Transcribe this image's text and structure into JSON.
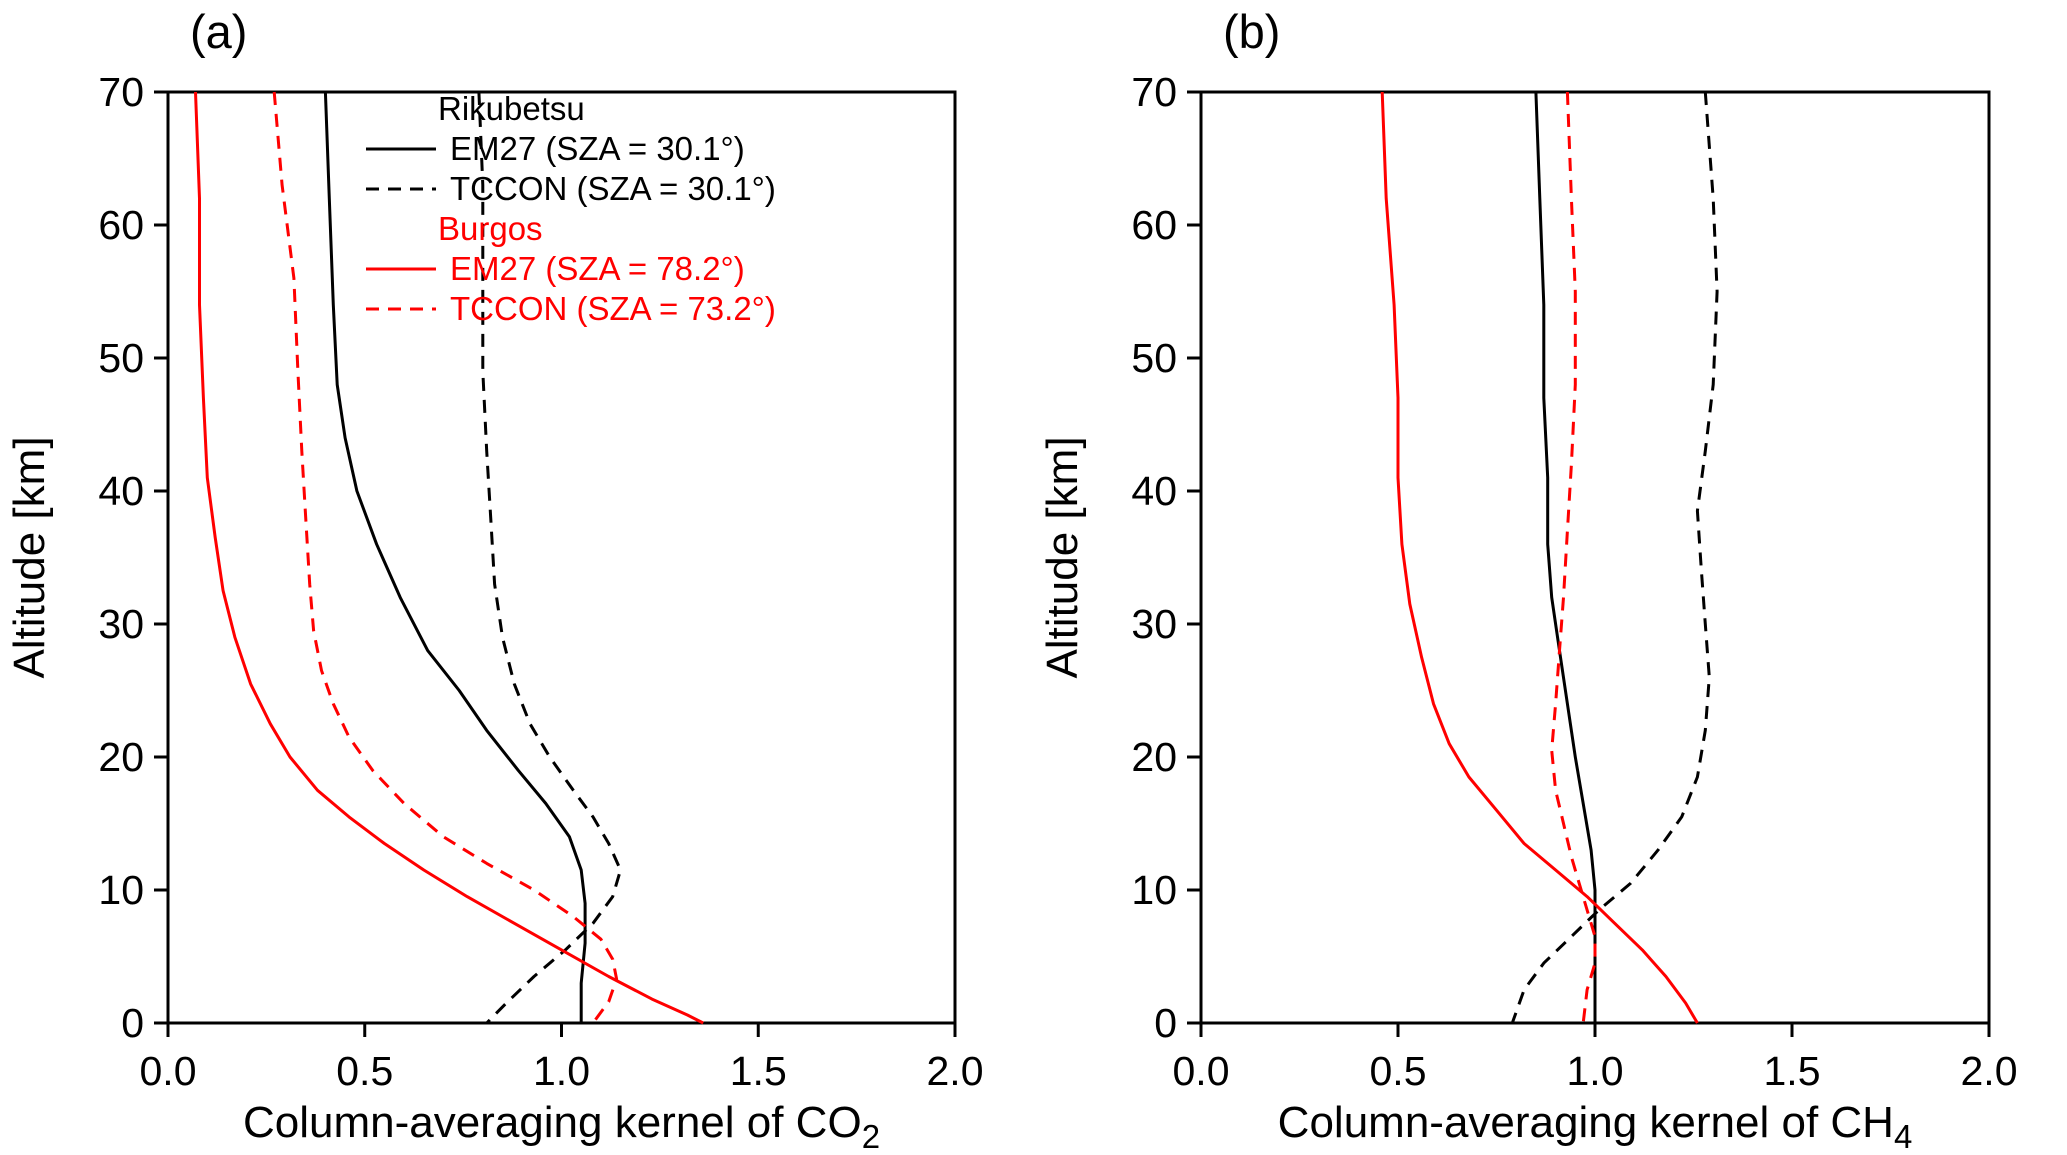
{
  "figure": {
    "background": "#ffffff",
    "accent_black": "#000000",
    "accent_red": "#ff0000"
  },
  "chart_data": [
    {
      "type": "line",
      "panel_label": "(a)",
      "xlabel_main": "Column-averaging kernel of CO",
      "xlabel_sub": "2",
      "ylabel": "Altitude [km]",
      "xlim": [
        0.0,
        2.0
      ],
      "ylim": [
        0,
        70
      ],
      "xticks": [
        0.0,
        0.5,
        1.0,
        1.5,
        2.0
      ],
      "xtick_labels": [
        "0.0",
        "0.5",
        "1.0",
        "1.5",
        "2.0"
      ],
      "yticks": [
        0,
        10,
        20,
        30,
        40,
        50,
        60,
        70
      ],
      "ytick_labels": [
        "0",
        "10",
        "20",
        "30",
        "40",
        "50",
        "60",
        "70"
      ],
      "grid": false,
      "legend_position": "upper-middle-inside",
      "legend": {
        "groups": [
          {
            "header": "Rikubetsu",
            "color": "#000000",
            "items": [
              {
                "label": "EM27 (SZA = 30.1°)",
                "dash": "solid"
              },
              {
                "label": "TCCON (SZA = 30.1°)",
                "dash": "dashed"
              }
            ]
          },
          {
            "header": "Burgos",
            "color": "#ff0000",
            "items": [
              {
                "label": "EM27 (SZA = 78.2°)",
                "dash": "solid"
              },
              {
                "label": "TCCON (SZA = 73.2°)",
                "dash": "dashed"
              }
            ]
          }
        ]
      },
      "series": [
        {
          "id": "rikubetsu-em27-co2",
          "name": "Rikubetsu EM27 (SZA = 30.1°)",
          "color": "#000000",
          "dash": "solid",
          "points": [
            [
              0.4,
              70
            ],
            [
              0.41,
              62
            ],
            [
              0.42,
              54
            ],
            [
              0.43,
              48
            ],
            [
              0.45,
              44
            ],
            [
              0.48,
              40
            ],
            [
              0.53,
              36
            ],
            [
              0.59,
              32
            ],
            [
              0.66,
              28
            ],
            [
              0.74,
              25
            ],
            [
              0.81,
              22
            ],
            [
              0.89,
              19
            ],
            [
              0.96,
              16.5
            ],
            [
              1.02,
              14
            ],
            [
              1.05,
              11.5
            ],
            [
              1.06,
              9
            ],
            [
              1.06,
              6
            ],
            [
              1.05,
              3
            ],
            [
              1.05,
              0
            ]
          ]
        },
        {
          "id": "rikubetsu-tccon-co2",
          "name": "Rikubetsu TCCON (SZA = 30.1°)",
          "color": "#000000",
          "dash": "dashed",
          "points": [
            [
              0.79,
              70
            ],
            [
              0.8,
              63
            ],
            [
              0.8,
              56
            ],
            [
              0.8,
              49
            ],
            [
              0.81,
              43
            ],
            [
              0.82,
              38
            ],
            [
              0.83,
              33
            ],
            [
              0.85,
              29
            ],
            [
              0.88,
              25.5
            ],
            [
              0.92,
              22.5
            ],
            [
              0.97,
              20
            ],
            [
              1.03,
              17.5
            ],
            [
              1.08,
              15.5
            ],
            [
              1.12,
              13.5
            ],
            [
              1.15,
              11.5
            ],
            [
              1.13,
              9.5
            ],
            [
              1.08,
              7.5
            ],
            [
              1.01,
              5.5
            ],
            [
              0.93,
              3.5
            ],
            [
              0.86,
              1.5
            ],
            [
              0.81,
              0
            ]
          ]
        },
        {
          "id": "burgos-em27-co2",
          "name": "Burgos EM27 (SZA = 78.2°)",
          "color": "#ff0000",
          "dash": "solid",
          "points": [
            [
              0.07,
              70
            ],
            [
              0.08,
              62
            ],
            [
              0.08,
              54
            ],
            [
              0.09,
              47
            ],
            [
              0.1,
              41
            ],
            [
              0.12,
              36.5
            ],
            [
              0.14,
              32.5
            ],
            [
              0.17,
              29
            ],
            [
              0.21,
              25.5
            ],
            [
              0.26,
              22.5
            ],
            [
              0.31,
              20
            ],
            [
              0.38,
              17.5
            ],
            [
              0.46,
              15.5
            ],
            [
              0.55,
              13.5
            ],
            [
              0.65,
              11.5
            ],
            [
              0.76,
              9.5
            ],
            [
              0.88,
              7.5
            ],
            [
              1.0,
              5.5
            ],
            [
              1.12,
              3.5
            ],
            [
              1.23,
              1.8
            ],
            [
              1.32,
              0.6
            ],
            [
              1.36,
              0
            ]
          ]
        },
        {
          "id": "burgos-tccon-co2",
          "name": "Burgos TCCON (SZA = 73.2°)",
          "color": "#ff0000",
          "dash": "dashed",
          "points": [
            [
              0.27,
              70
            ],
            [
              0.29,
              63
            ],
            [
              0.32,
              56
            ],
            [
              0.33,
              49
            ],
            [
              0.34,
              43
            ],
            [
              0.35,
              38
            ],
            [
              0.36,
              33
            ],
            [
              0.37,
              29.5
            ],
            [
              0.39,
              26.5
            ],
            [
              0.42,
              24
            ],
            [
              0.46,
              21.5
            ],
            [
              0.52,
              19
            ],
            [
              0.6,
              16.5
            ],
            [
              0.7,
              14
            ],
            [
              0.81,
              12
            ],
            [
              0.93,
              10
            ],
            [
              1.03,
              8
            ],
            [
              1.1,
              6.3
            ],
            [
              1.13,
              4.8
            ],
            [
              1.14,
              3.3
            ],
            [
              1.12,
              1.6
            ],
            [
              1.08,
              0
            ]
          ]
        }
      ]
    },
    {
      "type": "line",
      "panel_label": "(b)",
      "xlabel_main": "Column-averaging kernel of CH",
      "xlabel_sub": "4",
      "ylabel": "Altitude [km]",
      "xlim": [
        0.0,
        2.0
      ],
      "ylim": [
        0,
        70
      ],
      "xticks": [
        0.0,
        0.5,
        1.0,
        1.5,
        2.0
      ],
      "xtick_labels": [
        "0.0",
        "0.5",
        "1.0",
        "1.5",
        "2.0"
      ],
      "yticks": [
        0,
        10,
        20,
        30,
        40,
        50,
        60,
        70
      ],
      "ytick_labels": [
        "0",
        "10",
        "20",
        "30",
        "40",
        "50",
        "60",
        "70"
      ],
      "grid": false,
      "legend": null,
      "series": [
        {
          "id": "rikubetsu-em27-ch4",
          "name": "Rikubetsu EM27 (SZA = 30.1°)",
          "color": "#000000",
          "dash": "solid",
          "points": [
            [
              0.85,
              70
            ],
            [
              0.86,
              62
            ],
            [
              0.87,
              54
            ],
            [
              0.87,
              47
            ],
            [
              0.88,
              41
            ],
            [
              0.88,
              36
            ],
            [
              0.89,
              32
            ],
            [
              0.91,
              28
            ],
            [
              0.93,
              24
            ],
            [
              0.95,
              20
            ],
            [
              0.97,
              16.5
            ],
            [
              0.99,
              13
            ],
            [
              1.0,
              10
            ],
            [
              1.0,
              7
            ],
            [
              1.0,
              3.5
            ],
            [
              1.0,
              0
            ]
          ]
        },
        {
          "id": "rikubetsu-tccon-ch4",
          "name": "Rikubetsu TCCON (SZA = 30.1°)",
          "color": "#000000",
          "dash": "dashed",
          "points": [
            [
              1.28,
              70
            ],
            [
              1.3,
              62
            ],
            [
              1.31,
              55
            ],
            [
              1.3,
              48
            ],
            [
              1.28,
              43
            ],
            [
              1.26,
              38.5
            ],
            [
              1.27,
              34
            ],
            [
              1.28,
              30
            ],
            [
              1.29,
              26
            ],
            [
              1.28,
              22
            ],
            [
              1.26,
              18.5
            ],
            [
              1.22,
              15.5
            ],
            [
              1.16,
              13
            ],
            [
              1.09,
              10.5
            ],
            [
              1.01,
              8.5
            ],
            [
              0.94,
              6.5
            ],
            [
              0.87,
              4.5
            ],
            [
              0.82,
              2.5
            ],
            [
              0.79,
              0
            ]
          ]
        },
        {
          "id": "burgos-em27-ch4",
          "name": "Burgos EM27 (SZA = 78.2°)",
          "color": "#ff0000",
          "dash": "solid",
          "points": [
            [
              0.46,
              70
            ],
            [
              0.47,
              62
            ],
            [
              0.49,
              54
            ],
            [
              0.5,
              47
            ],
            [
              0.5,
              41
            ],
            [
              0.51,
              36
            ],
            [
              0.53,
              31.5
            ],
            [
              0.56,
              27.5
            ],
            [
              0.59,
              24
            ],
            [
              0.63,
              21
            ],
            [
              0.68,
              18.5
            ],
            [
              0.75,
              16
            ],
            [
              0.82,
              13.5
            ],
            [
              0.9,
              11.5
            ],
            [
              0.98,
              9.5
            ],
            [
              1.05,
              7.5
            ],
            [
              1.12,
              5.5
            ],
            [
              1.18,
              3.5
            ],
            [
              1.23,
              1.5
            ],
            [
              1.26,
              0
            ]
          ]
        },
        {
          "id": "burgos-tccon-ch4",
          "name": "Burgos TCCON (SZA = 73.2°)",
          "color": "#ff0000",
          "dash": "dashed",
          "points": [
            [
              0.93,
              70
            ],
            [
              0.94,
              62
            ],
            [
              0.95,
              55
            ],
            [
              0.95,
              48
            ],
            [
              0.94,
              42
            ],
            [
              0.93,
              37
            ],
            [
              0.92,
              32
            ],
            [
              0.91,
              28
            ],
            [
              0.9,
              24
            ],
            [
              0.89,
              20.5
            ],
            [
              0.9,
              17.5
            ],
            [
              0.92,
              15
            ],
            [
              0.94,
              12.5
            ],
            [
              0.96,
              10.5
            ],
            [
              0.98,
              8.5
            ],
            [
              1.0,
              6.5
            ],
            [
              1.0,
              4.5
            ],
            [
              0.98,
              2.5
            ],
            [
              0.97,
              0
            ]
          ]
        }
      ]
    }
  ]
}
